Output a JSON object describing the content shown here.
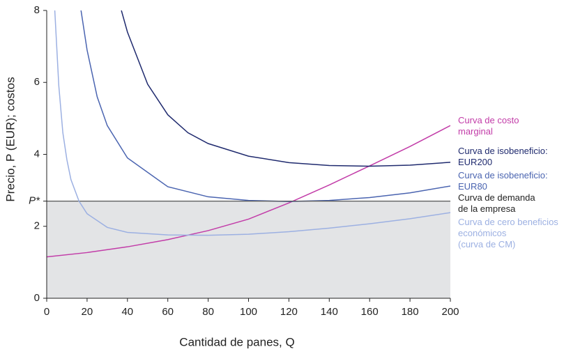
{
  "chart_data": {
    "type": "line",
    "xlabel": "Cantidad de panes, Q",
    "ylabel": "Precio, P (EUR); costos",
    "xlim": [
      0,
      200
    ],
    "ylim": [
      0,
      8
    ],
    "xticks": [
      0,
      20,
      40,
      60,
      80,
      100,
      120,
      140,
      160,
      180,
      200
    ],
    "yticks": [
      0,
      2,
      {
        "value": 2.7,
        "label": "P*"
      },
      4,
      6,
      8
    ],
    "grid": false,
    "series": [
      {
        "name": "Curva de costo\nmarginal",
        "color": "#c23ca8",
        "x": [
          0,
          20,
          40,
          60,
          80,
          100,
          120,
          140,
          160,
          180,
          200
        ],
        "values": [
          1.15,
          1.27,
          1.43,
          1.63,
          1.88,
          2.2,
          2.65,
          3.15,
          3.68,
          4.22,
          4.8
        ]
      },
      {
        "name": "Curva de isobeneficio:\nEUR200",
        "color": "#1f2a6e",
        "x": [
          37,
          40,
          50,
          60,
          70,
          80,
          100,
          120,
          140,
          160,
          180,
          200
        ],
        "values": [
          8,
          7.4,
          5.95,
          5.1,
          4.6,
          4.3,
          3.95,
          3.77,
          3.69,
          3.67,
          3.7,
          3.78
        ]
      },
      {
        "name": "Curva de isobeneficio:\nEUR80",
        "color": "#4a64b0",
        "x": [
          17,
          20,
          25,
          30,
          40,
          60,
          80,
          100,
          120,
          140,
          160,
          180,
          200
        ],
        "values": [
          8,
          6.9,
          5.6,
          4.8,
          3.9,
          3.1,
          2.82,
          2.72,
          2.69,
          2.72,
          2.8,
          2.93,
          3.12
        ]
      },
      {
        "name": "Curva de demanda\nde la empresa",
        "color": "#555555",
        "fill_below": "#e3e4e6",
        "x": [
          0,
          200
        ],
        "values": [
          2.7,
          2.7
        ]
      },
      {
        "name": "Curva de cero beneficios\neconómicos\n(curva de CM)",
        "color": "#9cb0e2",
        "x": [
          4,
          6,
          8,
          10,
          12,
          16,
          20,
          30,
          40,
          60,
          80,
          100,
          120,
          140,
          160,
          180,
          200
        ],
        "values": [
          8,
          5.9,
          4.6,
          3.85,
          3.3,
          2.7,
          2.35,
          1.97,
          1.83,
          1.76,
          1.75,
          1.78,
          1.85,
          1.95,
          2.07,
          2.21,
          2.38
        ]
      }
    ]
  }
}
